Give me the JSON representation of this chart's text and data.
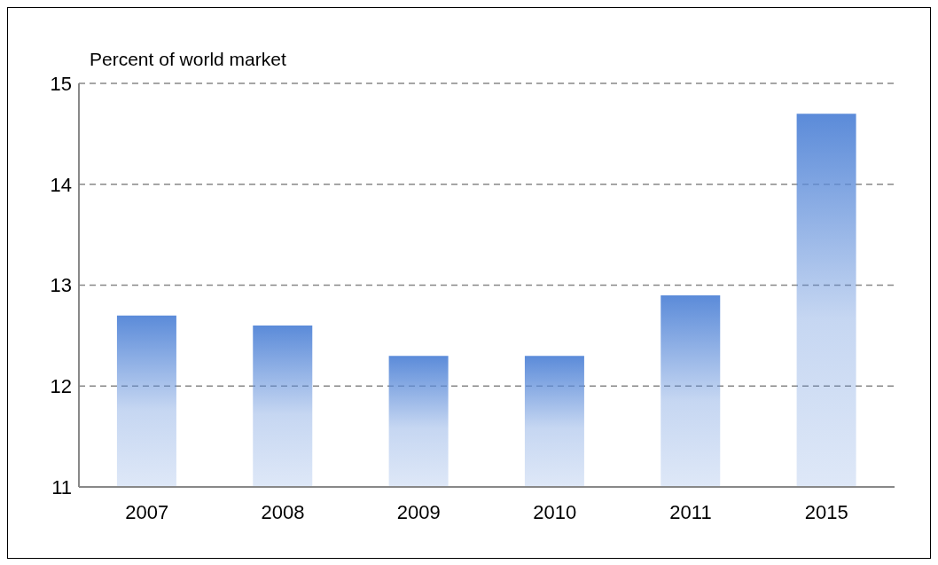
{
  "chart_data": {
    "type": "bar",
    "ylabel": "Percent of world market",
    "categories": [
      "2007",
      "2008",
      "2009",
      "2010",
      "2011",
      "2015"
    ],
    "values": [
      12.7,
      12.6,
      12.3,
      12.3,
      12.9,
      14.7
    ],
    "color": "#5b8bd9",
    "ylim": [
      11,
      15
    ],
    "yticks": [
      11,
      12,
      13,
      14,
      15
    ],
    "grid": "y",
    "legend": false
  }
}
